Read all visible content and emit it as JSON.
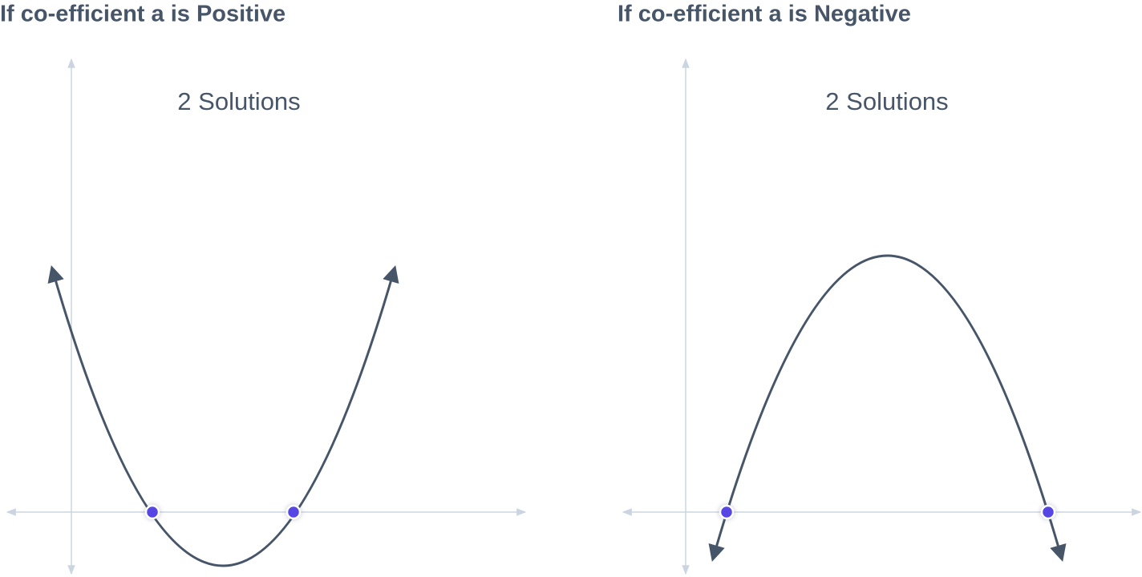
{
  "panels": [
    {
      "title": "If co-efficient a is Positive",
      "label": "2 Solutions"
    },
    {
      "title": "If co-efficient a is Negative",
      "label": "2 Solutions"
    }
  ]
}
